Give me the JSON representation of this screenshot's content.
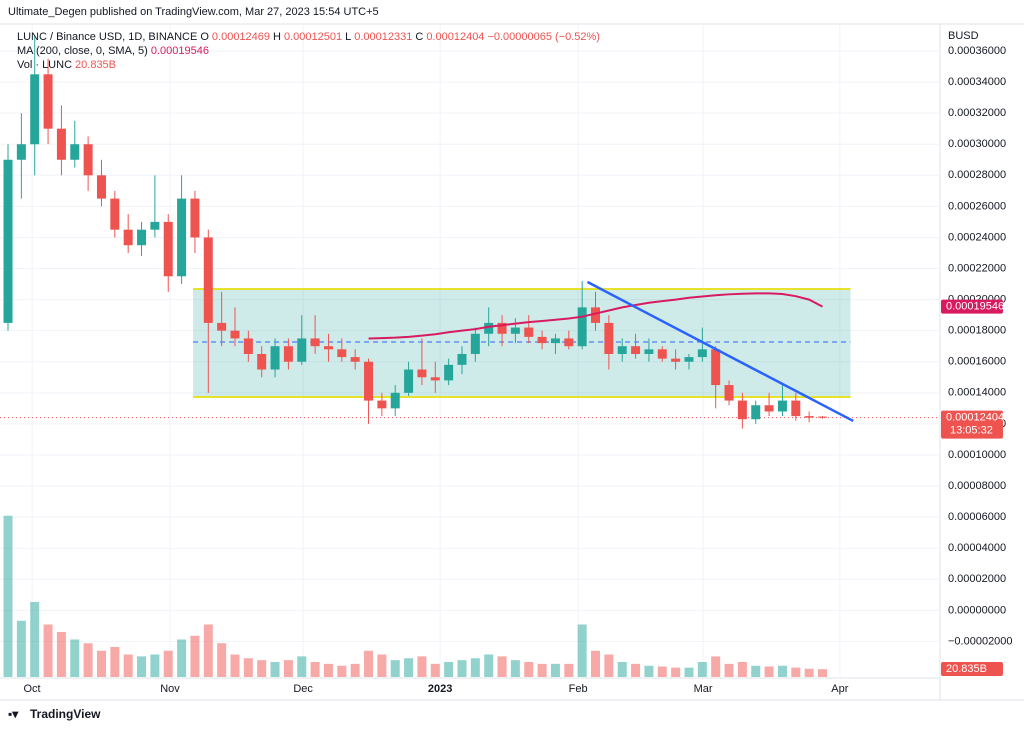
{
  "header": {
    "title": "Ultimate_Degen published on TradingView.com, Mar 27, 2023 15:54 UTC+5"
  },
  "footer": {
    "brand": "TradingView"
  },
  "chart_data": {
    "type": "candlestick",
    "symbol": "LUNC / Binance USD, 1D, BINANCE",
    "ohlc_letters": {
      "open": "O",
      "high": "H",
      "low": "L",
      "close": "C"
    },
    "change": "−0.00000065 (−0.52%)",
    "ma_name": "MA (200, close, 0, SMA, 5)",
    "volume_name": "Vol · LUNC",
    "volume_last_label": "20.835B",
    "currency": "BUSD",
    "countdown": "13:05:32",
    "up_color": "#26a69a",
    "down_color": "#ef5350",
    "ma_color": "#d81b60",
    "trend_color": "#2962ff",
    "channel_color": "#e6e12a",
    "grid": true,
    "xlim": [
      -0.6,
      69.8
    ],
    "xticks": [
      {
        "value": 1.8,
        "label": "Oct"
      },
      {
        "value": 12.13,
        "label": "Nov"
      },
      {
        "value": 22.1,
        "label": "Dec"
      },
      {
        "value": 32.36,
        "label": "2023"
      },
      {
        "value": 42.7,
        "label": "Feb"
      },
      {
        "value": 52.06,
        "label": "Mar"
      },
      {
        "value": 62.3,
        "label": "Apr"
      }
    ],
    "ylim": [
      -4.29e-05,
      0.0003748
    ],
    "yticks": [
      {
        "value": -2e-05,
        "label": "−0.00002000"
      },
      {
        "value": 0,
        "label": "0.00000000"
      },
      {
        "value": 2e-05,
        "label": "0.00002000"
      },
      {
        "value": 4e-05,
        "label": "0.00004000"
      },
      {
        "value": 6e-05,
        "label": "0.00006000"
      },
      {
        "value": 8e-05,
        "label": "0.00008000"
      },
      {
        "value": 0.0001,
        "label": "0.00010000"
      },
      {
        "value": 0.00012,
        "label": "0.00012000"
      },
      {
        "value": 0.00014,
        "label": "0.00014000"
      },
      {
        "value": 0.00016,
        "label": "0.00016000"
      },
      {
        "value": 0.00018,
        "label": "0.00018000"
      },
      {
        "value": 0.0002,
        "label": "0.00020000"
      },
      {
        "value": 0.00022,
        "label": "0.00022000"
      },
      {
        "value": 0.00024,
        "label": "0.00024000"
      },
      {
        "value": 0.00026,
        "label": "0.00026000"
      },
      {
        "value": 0.00028,
        "label": "0.00028000"
      },
      {
        "value": 0.0003,
        "label": "0.00030000"
      },
      {
        "value": 0.00032,
        "label": "0.00032000"
      },
      {
        "value": 0.00034,
        "label": "0.00034000"
      },
      {
        "value": 0.00036,
        "label": "0.00036000"
      }
    ],
    "volume_ylim": [
      0,
      450
    ],
    "candles": [
      {
        "open": 0.000185,
        "high": 0.0003,
        "low": 0.00018,
        "close": 0.00029,
        "volume": 430
      },
      {
        "open": 0.00029,
        "high": 0.00032,
        "low": 0.000265,
        "close": 0.0003,
        "volume": 150
      },
      {
        "open": 0.0003,
        "high": 0.00037,
        "low": 0.00028,
        "close": 0.000345,
        "volume": 200
      },
      {
        "open": 0.000345,
        "high": 0.000355,
        "low": 0.0003,
        "close": 0.00031,
        "volume": 140
      },
      {
        "open": 0.00031,
        "high": 0.000325,
        "low": 0.00028,
        "close": 0.00029,
        "volume": 120
      },
      {
        "open": 0.00029,
        "high": 0.000315,
        "low": 0.000285,
        "close": 0.0003,
        "volume": 100
      },
      {
        "open": 0.0003,
        "high": 0.000305,
        "low": 0.00027,
        "close": 0.00028,
        "volume": 90
      },
      {
        "open": 0.00028,
        "high": 0.00029,
        "low": 0.00026,
        "close": 0.000265,
        "volume": 70
      },
      {
        "open": 0.000265,
        "high": 0.00027,
        "low": 0.00024,
        "close": 0.000245,
        "volume": 80
      },
      {
        "open": 0.000245,
        "high": 0.000255,
        "low": 0.00023,
        "close": 0.000235,
        "volume": 60
      },
      {
        "open": 0.000235,
        "high": 0.00025,
        "low": 0.000228,
        "close": 0.000245,
        "volume": 55
      },
      {
        "open": 0.000245,
        "high": 0.00028,
        "low": 0.00024,
        "close": 0.00025,
        "volume": 60
      },
      {
        "open": 0.00025,
        "high": 0.000255,
        "low": 0.000205,
        "close": 0.000215,
        "volume": 70
      },
      {
        "open": 0.000215,
        "high": 0.00028,
        "low": 0.00021,
        "close": 0.000265,
        "volume": 100
      },
      {
        "open": 0.000265,
        "high": 0.00027,
        "low": 0.00023,
        "close": 0.00024,
        "volume": 110
      },
      {
        "open": 0.00024,
        "high": 0.000245,
        "low": 0.00014,
        "close": 0.000185,
        "volume": 140
      },
      {
        "open": 0.000185,
        "high": 0.000205,
        "low": 0.00017,
        "close": 0.00018,
        "volume": 90
      },
      {
        "open": 0.00018,
        "high": 0.000195,
        "low": 0.00017,
        "close": 0.000175,
        "volume": 60
      },
      {
        "open": 0.000175,
        "high": 0.00018,
        "low": 0.00016,
        "close": 0.000165,
        "volume": 50
      },
      {
        "open": 0.000165,
        "high": 0.00017,
        "low": 0.00015,
        "close": 0.000155,
        "volume": 45
      },
      {
        "open": 0.000155,
        "high": 0.000175,
        "low": 0.00015,
        "close": 0.00017,
        "volume": 40
      },
      {
        "open": 0.00017,
        "high": 0.000175,
        "low": 0.000155,
        "close": 0.00016,
        "volume": 45
      },
      {
        "open": 0.00016,
        "high": 0.00019,
        "low": 0.000158,
        "close": 0.000175,
        "volume": 55
      },
      {
        "open": 0.000175,
        "high": 0.00019,
        "low": 0.000165,
        "close": 0.00017,
        "volume": 40
      },
      {
        "open": 0.00017,
        "high": 0.000178,
        "low": 0.00016,
        "close": 0.000168,
        "volume": 35
      },
      {
        "open": 0.000168,
        "high": 0.000175,
        "low": 0.00016,
        "close": 0.000163,
        "volume": 30
      },
      {
        "open": 0.000163,
        "high": 0.000168,
        "low": 0.000155,
        "close": 0.00016,
        "volume": 35
      },
      {
        "open": 0.00016,
        "high": 0.000162,
        "low": 0.00012,
        "close": 0.000135,
        "volume": 70
      },
      {
        "open": 0.000135,
        "high": 0.00014,
        "low": 0.000125,
        "close": 0.00013,
        "volume": 60
      },
      {
        "open": 0.00013,
        "high": 0.000145,
        "low": 0.000125,
        "close": 0.00014,
        "volume": 45
      },
      {
        "open": 0.00014,
        "high": 0.00016,
        "low": 0.000138,
        "close": 0.000155,
        "volume": 50
      },
      {
        "open": 0.000155,
        "high": 0.000175,
        "low": 0.000145,
        "close": 0.00015,
        "volume": 55
      },
      {
        "open": 0.00015,
        "high": 0.00016,
        "low": 0.00014,
        "close": 0.000148,
        "volume": 35
      },
      {
        "open": 0.000148,
        "high": 0.000162,
        "low": 0.000145,
        "close": 0.000158,
        "volume": 40
      },
      {
        "open": 0.000158,
        "high": 0.00017,
        "low": 0.000152,
        "close": 0.000165,
        "volume": 45
      },
      {
        "open": 0.000165,
        "high": 0.000182,
        "low": 0.00016,
        "close": 0.000178,
        "volume": 50
      },
      {
        "open": 0.000178,
        "high": 0.000195,
        "low": 0.00017,
        "close": 0.000185,
        "volume": 60
      },
      {
        "open": 0.000185,
        "high": 0.00019,
        "low": 0.00017,
        "close": 0.000178,
        "volume": 55
      },
      {
        "open": 0.000178,
        "high": 0.000188,
        "low": 0.000172,
        "close": 0.000182,
        "volume": 45
      },
      {
        "open": 0.000182,
        "high": 0.00019,
        "low": 0.000172,
        "close": 0.000176,
        "volume": 40
      },
      {
        "open": 0.000176,
        "high": 0.00018,
        "low": 0.000168,
        "close": 0.000172,
        "volume": 35
      },
      {
        "open": 0.000172,
        "high": 0.000178,
        "low": 0.000165,
        "close": 0.000175,
        "volume": 35
      },
      {
        "open": 0.000175,
        "high": 0.00018,
        "low": 0.000168,
        "close": 0.00017,
        "volume": 35
      },
      {
        "open": 0.00017,
        "high": 0.000212,
        "low": 0.000168,
        "close": 0.000195,
        "volume": 140
      },
      {
        "open": 0.000195,
        "high": 0.000205,
        "low": 0.00018,
        "close": 0.000185,
        "volume": 70
      },
      {
        "open": 0.000185,
        "high": 0.00019,
        "low": 0.000155,
        "close": 0.000165,
        "volume": 60
      },
      {
        "open": 0.000165,
        "high": 0.000175,
        "low": 0.00016,
        "close": 0.00017,
        "volume": 40
      },
      {
        "open": 0.00017,
        "high": 0.000178,
        "low": 0.000162,
        "close": 0.000165,
        "volume": 35
      },
      {
        "open": 0.000165,
        "high": 0.000175,
        "low": 0.00016,
        "close": 0.000168,
        "volume": 30
      },
      {
        "open": 0.000168,
        "high": 0.00017,
        "low": 0.00016,
        "close": 0.000162,
        "volume": 28
      },
      {
        "open": 0.000162,
        "high": 0.000168,
        "low": 0.000155,
        "close": 0.00016,
        "volume": 25
      },
      {
        "open": 0.00016,
        "high": 0.000165,
        "low": 0.000155,
        "close": 0.000163,
        "volume": 25
      },
      {
        "open": 0.000163,
        "high": 0.000182,
        "low": 0.00016,
        "close": 0.000168,
        "volume": 40
      },
      {
        "open": 0.000168,
        "high": 0.00017,
        "low": 0.00013,
        "close": 0.000145,
        "volume": 55
      },
      {
        "open": 0.000145,
        "high": 0.000148,
        "low": 0.000132,
        "close": 0.000135,
        "volume": 35
      },
      {
        "open": 0.000135,
        "high": 0.00014,
        "low": 0.000117,
        "close": 0.000123,
        "volume": 40
      },
      {
        "open": 0.000123,
        "high": 0.000135,
        "low": 0.00012,
        "close": 0.000132,
        "volume": 30
      },
      {
        "open": 0.000132,
        "high": 0.00014,
        "low": 0.000125,
        "close": 0.000128,
        "volume": 28
      },
      {
        "open": 0.000128,
        "high": 0.000145,
        "low": 0.000125,
        "close": 0.000135,
        "volume": 30
      },
      {
        "open": 0.000135,
        "high": 0.00014,
        "low": 0.000122,
        "close": 0.000125,
        "volume": 25
      },
      {
        "open": 0.000125,
        "high": 0.000128,
        "low": 0.000121,
        "close": 0.000124,
        "volume": 22
      },
      {
        "open": 0.00012469,
        "high": 0.00012501,
        "low": 0.00012331,
        "close": 0.00012404,
        "volume": 20.835
      }
    ],
    "ma": [
      null,
      null,
      null,
      null,
      null,
      null,
      null,
      null,
      null,
      null,
      null,
      null,
      null,
      null,
      null,
      null,
      null,
      null,
      null,
      null,
      null,
      null,
      null,
      null,
      null,
      null,
      null,
      0.000175,
      0.0001752,
      0.0001755,
      0.000176,
      0.0001768,
      0.0001777,
      0.000179,
      0.00018,
      0.000181,
      0.0001825,
      0.0001835,
      0.0001845,
      0.0001855,
      0.0001862,
      0.000187,
      0.0001878,
      0.000189,
      0.000191,
      0.000193,
      0.000195,
      0.0001965,
      0.000198,
      0.000199,
      0.0002,
      0.0002012,
      0.000202,
      0.0002028,
      0.0002034,
      0.0002038,
      0.000204,
      0.000204,
      0.0002036,
      0.0002022,
      0.0002,
      0.00019546
    ],
    "channel": {
      "x": [
        13.86,
        63.1
      ],
      "top": 0.0002068,
      "bottom": 0.0001373,
      "middle": 0.0001727
    },
    "trendline": {
      "x": [
        43.4,
        63.3
      ],
      "y": [
        0.0002113,
        0.0001219
      ]
    }
  }
}
